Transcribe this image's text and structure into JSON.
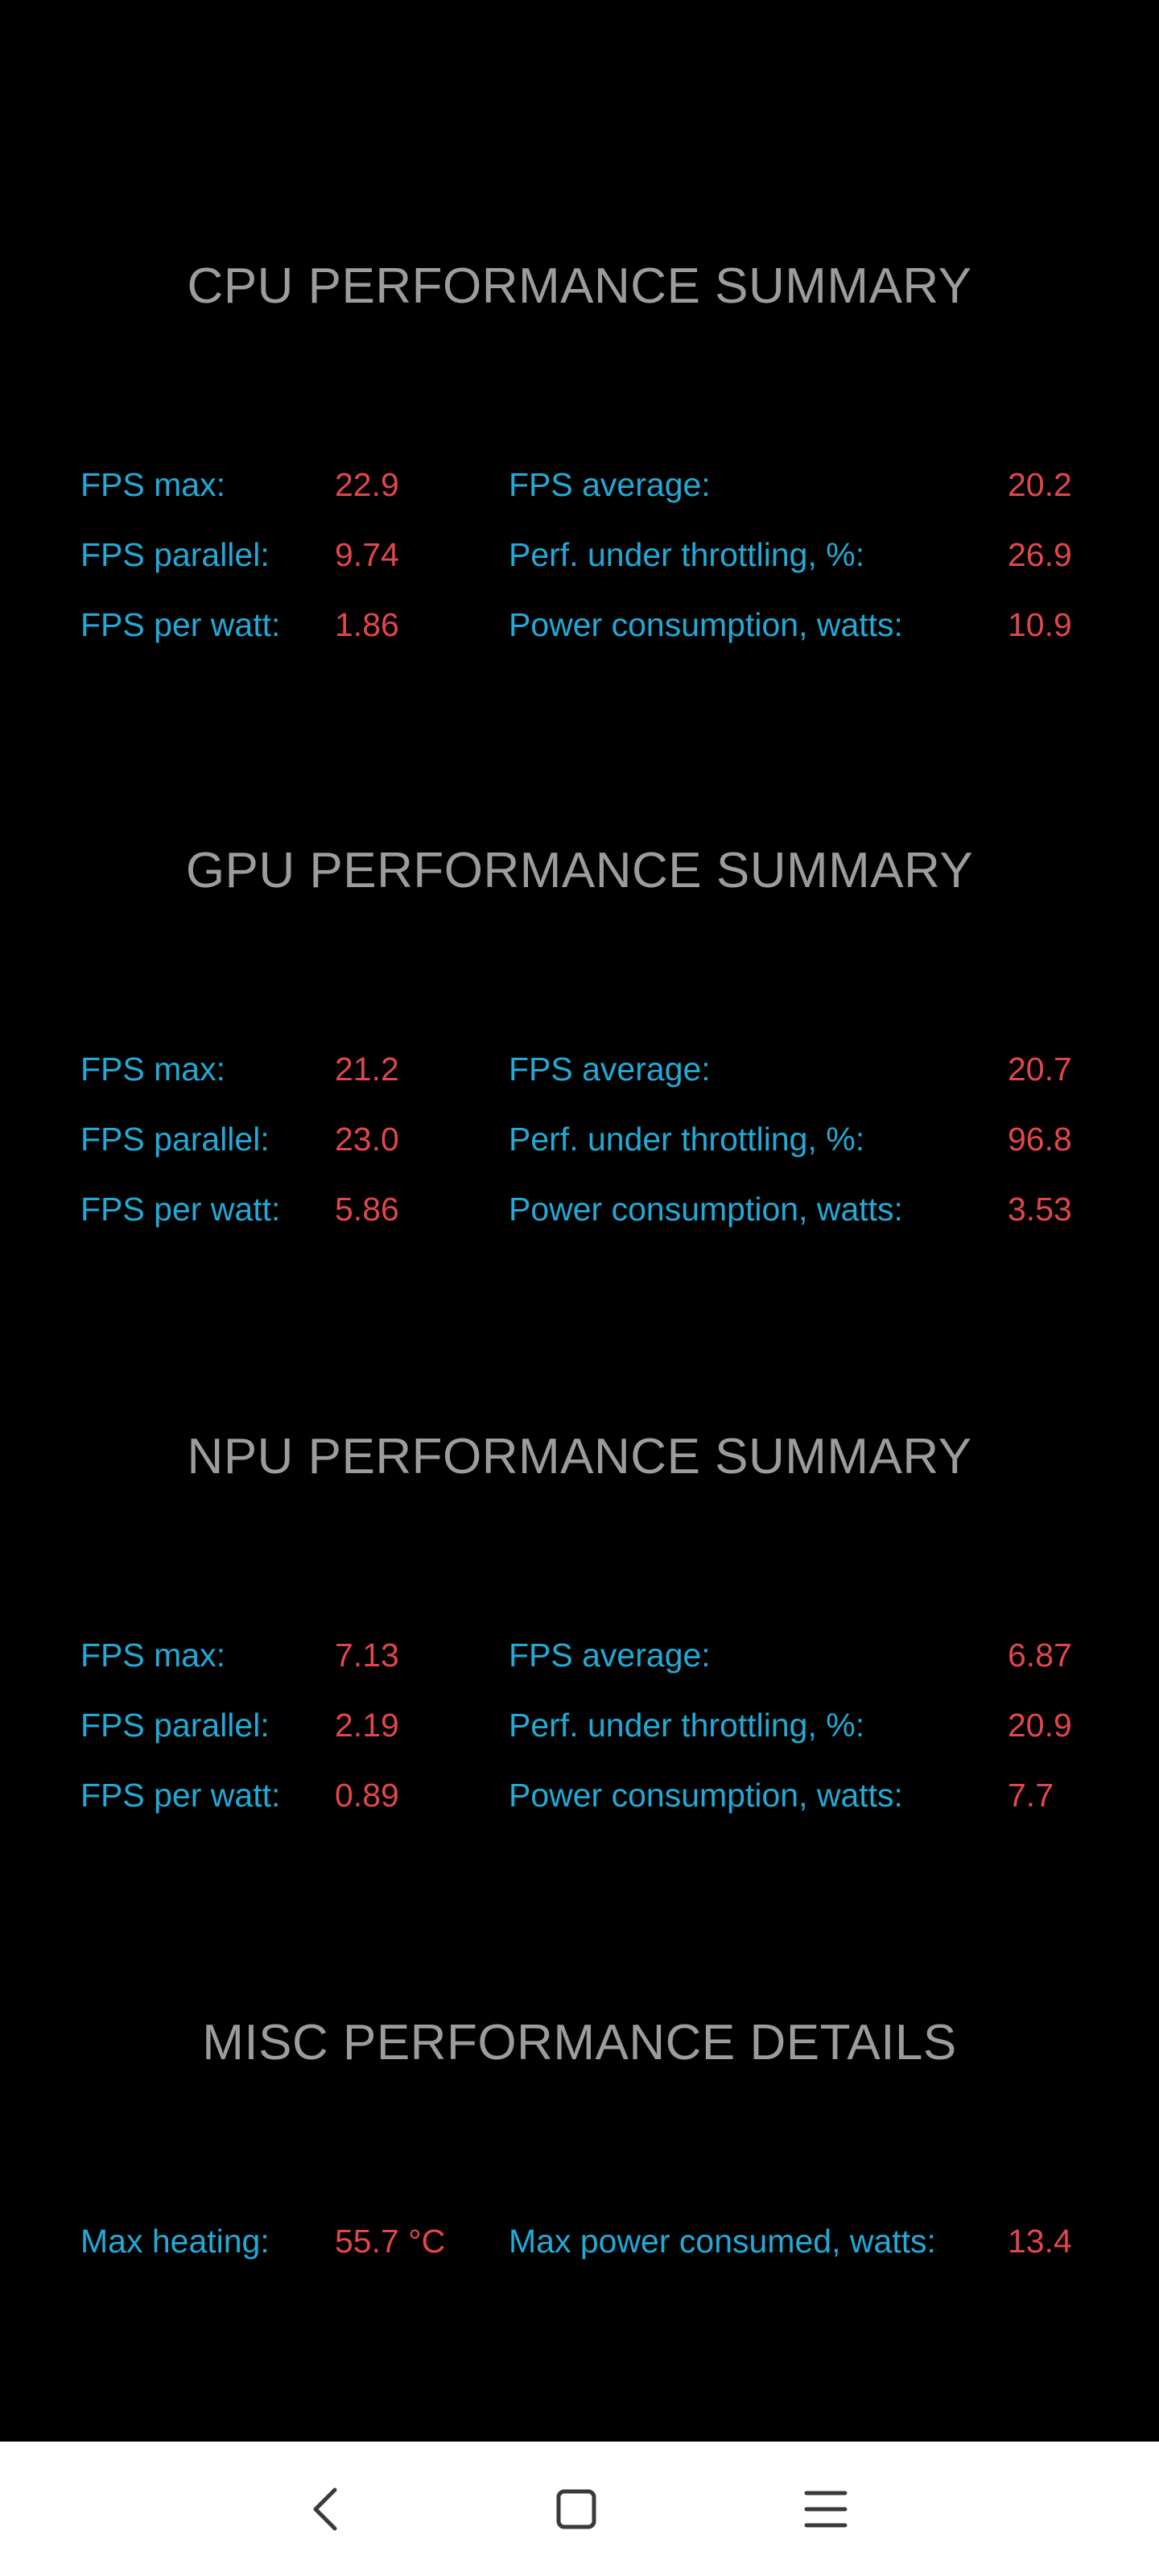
{
  "sections": [
    {
      "title": "CPU PERFORMANCE SUMMARY",
      "rows": [
        {
          "l1": "FPS max:",
          "v1": "22.9",
          "l2": "FPS average:",
          "v2": "20.2"
        },
        {
          "l1": "FPS parallel:",
          "v1": "9.74",
          "l2": "Perf. under throttling, %:",
          "v2": "26.9"
        },
        {
          "l1": "FPS per watt:",
          "v1": "1.86",
          "l2": "Power consumption, watts:",
          "v2": "10.9"
        }
      ]
    },
    {
      "title": "GPU PERFORMANCE SUMMARY",
      "rows": [
        {
          "l1": "FPS max:",
          "v1": "21.2",
          "l2": "FPS average:",
          "v2": "20.7"
        },
        {
          "l1": "FPS parallel:",
          "v1": "23.0",
          "l2": "Perf. under throttling, %:",
          "v2": "96.8"
        },
        {
          "l1": "FPS per watt:",
          "v1": "5.86",
          "l2": "Power consumption, watts:",
          "v2": "3.53"
        }
      ]
    },
    {
      "title": "NPU PERFORMANCE SUMMARY",
      "rows": [
        {
          "l1": "FPS max:",
          "v1": "7.13",
          "l2": "FPS average:",
          "v2": "6.87"
        },
        {
          "l1": "FPS parallel:",
          "v1": "2.19",
          "l2": "Perf. under throttling, %:",
          "v2": "20.9"
        },
        {
          "l1": "FPS per watt:",
          "v1": "0.89",
          "l2": "Power consumption, watts:",
          "v2": "7.7"
        }
      ]
    },
    {
      "title": "MISC PERFORMANCE DETAILS",
      "rows": [
        {
          "l1": "Max heating:",
          "v1": "55.7 °C",
          "l2": "Max power consumed, watts:",
          "v2": "13.4"
        }
      ]
    }
  ],
  "navbar": {
    "back_icon": "chevron-left-icon",
    "home_icon": "square-icon",
    "menu_icon": "hamburger-icon"
  },
  "colors": {
    "background": "#000000",
    "title": "#9c9c9c",
    "label": "#23a9d6",
    "value": "#e0474c",
    "navbar": "#ffffff"
  }
}
